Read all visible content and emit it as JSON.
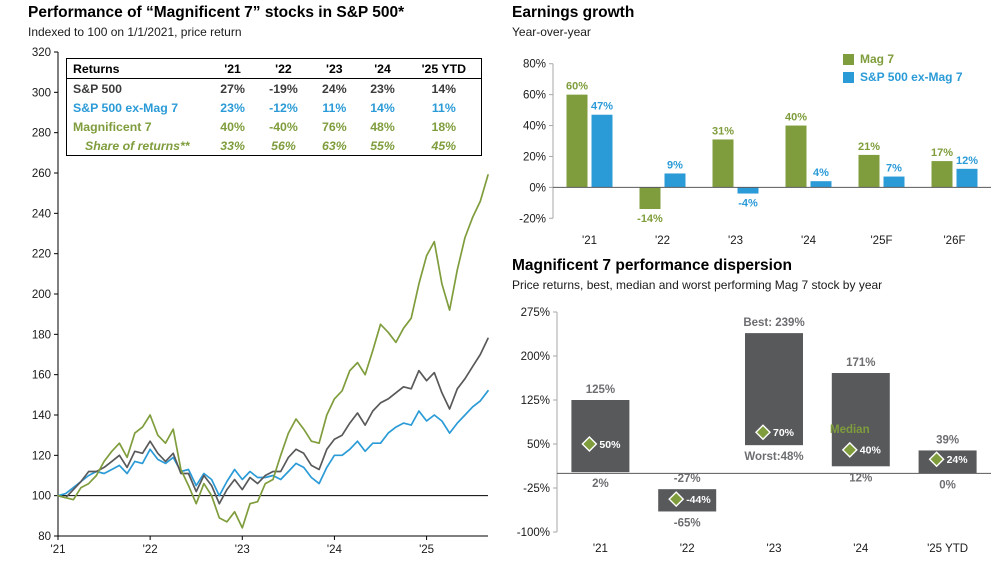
{
  "colors": {
    "mag7_green": "#7f9d3c",
    "ex_mag7_blue": "#2b9bd7",
    "sp500_gray": "#58595b",
    "bar_gray": "#58595b",
    "dispersion_label_gray": "#6d6e71",
    "axis_black": "#000000",
    "axis_light": "#a7a7a7",
    "tick_text": "#1a1a1a"
  },
  "chart_data": [
    {
      "id": "performance",
      "type": "line",
      "title": "Performance of “Magnificent 7” stocks in S&P 500*",
      "subtitle": "Indexed to 100 on 1/1/2021, price return",
      "ylim": [
        80,
        320
      ],
      "yticks": [
        80,
        100,
        120,
        140,
        160,
        180,
        200,
        220,
        240,
        260,
        280,
        300,
        320
      ],
      "baseline": 100,
      "x_range": [
        0,
        56
      ],
      "xtick_positions": [
        0,
        12,
        24,
        36,
        48
      ],
      "xtick_labels": [
        "'21",
        "'22",
        "'23",
        "'24",
        "'25"
      ],
      "series": [
        {
          "name": "S&P 500 ex-Mag 7",
          "color_key": "ex_mag7_blue",
          "values": [
            100,
            101,
            104,
            107,
            110,
            112,
            111,
            113,
            115,
            111,
            117,
            116,
            123,
            118,
            116,
            119,
            112,
            113,
            105,
            111,
            108,
            100,
            107,
            113,
            108,
            112,
            109,
            109,
            110,
            108,
            112,
            116,
            114,
            109,
            106,
            114,
            120,
            120,
            123,
            127,
            122,
            126,
            126,
            131,
            134,
            136,
            135,
            142,
            137,
            140,
            137,
            131,
            136,
            140,
            144,
            147,
            152
          ]
        },
        {
          "name": "S&P 500",
          "color_key": "sp500_gray",
          "values": [
            100,
            99,
            103,
            107,
            112,
            112,
            114,
            117,
            120,
            114,
            122,
            121,
            127,
            121,
            117,
            121,
            111,
            111,
            102,
            110,
            105,
            96,
            103,
            108,
            103,
            109,
            106,
            110,
            112,
            112,
            119,
            123,
            121,
            115,
            113,
            123,
            128,
            130,
            136,
            141,
            135,
            142,
            146,
            148,
            151,
            154,
            153,
            162,
            157,
            161,
            151,
            143,
            153,
            158,
            164,
            170,
            178
          ]
        },
        {
          "name": "Magnificent 7",
          "color_key": "mag7_green",
          "values": [
            100,
            99,
            98,
            104,
            106,
            110,
            117,
            122,
            126,
            119,
            131,
            134,
            140,
            130,
            126,
            133,
            113,
            105,
            96,
            106,
            100,
            89,
            87,
            92,
            84,
            96,
            97,
            106,
            108,
            120,
            131,
            138,
            133,
            127,
            126,
            140,
            148,
            152,
            162,
            166,
            160,
            172,
            185,
            181,
            176,
            183,
            188,
            205,
            219,
            226,
            205,
            192,
            212,
            228,
            238,
            246,
            259
          ]
        }
      ],
      "table": {
        "header": [
          "Returns",
          "'21",
          "'22",
          "'23",
          "'24",
          "'25 YTD"
        ],
        "rows": [
          {
            "label": "S&P 500",
            "values": [
              "27%",
              "-19%",
              "24%",
              "23%",
              "14%"
            ],
            "style": "gray"
          },
          {
            "label": "S&P 500 ex-Mag 7",
            "values": [
              "23%",
              "-12%",
              "11%",
              "14%",
              "11%"
            ],
            "style": "blue"
          },
          {
            "label": "Magnificent 7",
            "values": [
              "40%",
              "-40%",
              "76%",
              "48%",
              "18%"
            ],
            "style": "green"
          },
          {
            "label": "Share of returns**",
            "values": [
              "33%",
              "56%",
              "63%",
              "55%",
              "45%"
            ],
            "style": "green-italic"
          }
        ]
      }
    },
    {
      "id": "earnings",
      "type": "bar",
      "title": "Earnings growth",
      "subtitle": "Year-over-year",
      "categories": [
        "'21",
        "'22",
        "'23",
        "'24",
        "'25F",
        "'26F"
      ],
      "series": [
        {
          "name": "Mag 7",
          "color_key": "mag7_green",
          "values": [
            60,
            -14,
            31,
            40,
            21,
            17
          ]
        },
        {
          "name": "S&P 500 ex-Mag 7",
          "color_key": "ex_mag7_blue",
          "values": [
            47,
            9,
            -4,
            4,
            7,
            12
          ]
        }
      ],
      "ylim": [
        -25,
        85
      ],
      "yticks": [
        -20,
        0,
        20,
        40,
        60,
        80
      ],
      "legend_position": "top-right"
    },
    {
      "id": "dispersion",
      "type": "range-bar",
      "title": "Magnificent 7 performance dispersion",
      "subtitle": "Price returns, best, median and worst performing Mag 7 stock by year",
      "categories": [
        "'21",
        "'22",
        "'23",
        "'24",
        "'25 YTD"
      ],
      "ylim": [
        -100,
        275
      ],
      "yticks": [
        -100,
        -25,
        50,
        125,
        200,
        275
      ],
      "points": [
        {
          "best": 125,
          "worst": 2,
          "median": 50,
          "top_label": "125%",
          "bottom_label": "2%",
          "median_label": "50%"
        },
        {
          "best": -27,
          "worst": -65,
          "median": -44,
          "top_label": "-27%",
          "bottom_label": "-65%",
          "median_label": "-44%"
        },
        {
          "best": 239,
          "worst": 48,
          "median": 70,
          "top_label": "Best: 239%",
          "bottom_label": "Worst:48%",
          "median_label": "70%"
        },
        {
          "best": 171,
          "worst": 12,
          "median": 40,
          "top_label": "171%",
          "bottom_label": "12%",
          "median_label": "40%"
        },
        {
          "best": 39,
          "worst": 0,
          "median": 24,
          "top_label": "39%",
          "bottom_label": "0%",
          "median_label": "24%"
        }
      ],
      "median_annotation": {
        "text": "Median",
        "category_index": 3
      }
    }
  ]
}
